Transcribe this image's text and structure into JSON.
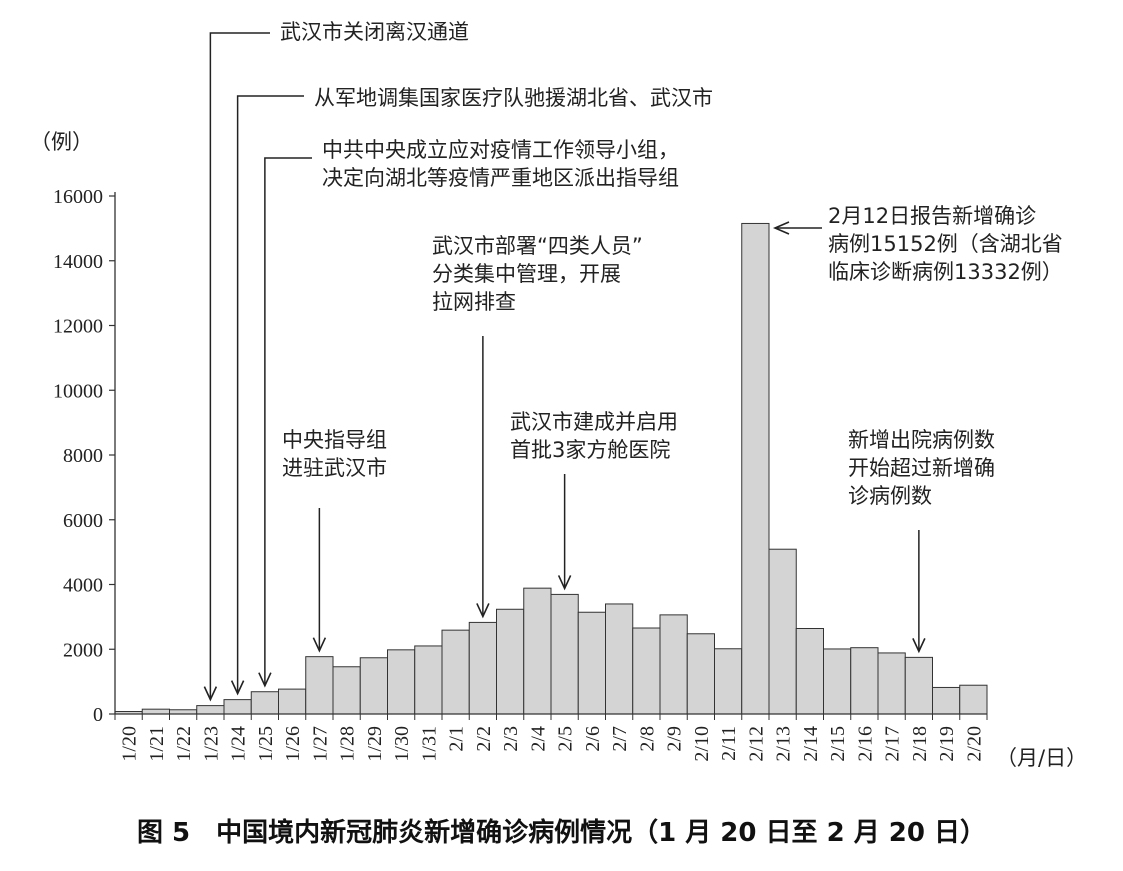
{
  "chart_data": {
    "type": "bar",
    "ylabel": "（例）",
    "xlabel": "（月/日）",
    "ylim": [
      0,
      16000
    ],
    "yticks": [
      0,
      2000,
      4000,
      6000,
      8000,
      10000,
      12000,
      14000,
      16000
    ],
    "categories": [
      "1/20",
      "1/21",
      "1/22",
      "1/23",
      "1/24",
      "1/25",
      "1/26",
      "1/27",
      "1/28",
      "1/29",
      "1/30",
      "1/31",
      "2/1",
      "2/2",
      "2/3",
      "2/4",
      "2/5",
      "2/6",
      "2/7",
      "2/8",
      "2/9",
      "2/10",
      "2/11",
      "2/12",
      "2/13",
      "2/14",
      "2/15",
      "2/16",
      "2/17",
      "2/18",
      "2/19",
      "2/20"
    ],
    "values": [
      77,
      149,
      131,
      259,
      444,
      688,
      769,
      1771,
      1459,
      1737,
      1982,
      2102,
      2590,
      2829,
      3235,
      3887,
      3694,
      3143,
      3399,
      2656,
      3062,
      2478,
      2015,
      15152,
      5090,
      2641,
      2009,
      2048,
      1886,
      1749,
      820,
      889
    ],
    "bar_color": "#d4d4d4",
    "annotations": [
      {
        "lines": [
          "武汉市关闭离汉通道"
        ],
        "date": "1/23"
      },
      {
        "lines": [
          "从军地调集国家医疗队驰援湖北省、武汉市"
        ],
        "date": "1/24"
      },
      {
        "lines": [
          "中共中央成立应对疫情工作领导小组，",
          "决定向湖北等疫情严重地区派出指导组"
        ],
        "date": "1/25"
      },
      {
        "lines": [
          "武汉市部署“四类人员”",
          "分类集中管理，开展",
          "拉网排查"
        ],
        "date": "2/2"
      },
      {
        "lines": [
          "中央指导组",
          "进驻武汉市"
        ],
        "date": "1/27"
      },
      {
        "lines": [
          "武汉市建成并启用",
          "首批3家方舱医院"
        ],
        "date": "2/5"
      },
      {
        "lines": [
          "2月12日报告新增确诊",
          "病例15152例（含湖北省",
          "临床诊断病例13332例）"
        ],
        "date": "2/12"
      },
      {
        "lines": [
          "新增出院病例数",
          "开始超过新增确",
          "诊病例数"
        ],
        "date": "2/18"
      }
    ]
  },
  "caption": "图 5　中国境内新冠肺炎新增确诊病例情况（1 月 20 日至 2 月 20 日）"
}
